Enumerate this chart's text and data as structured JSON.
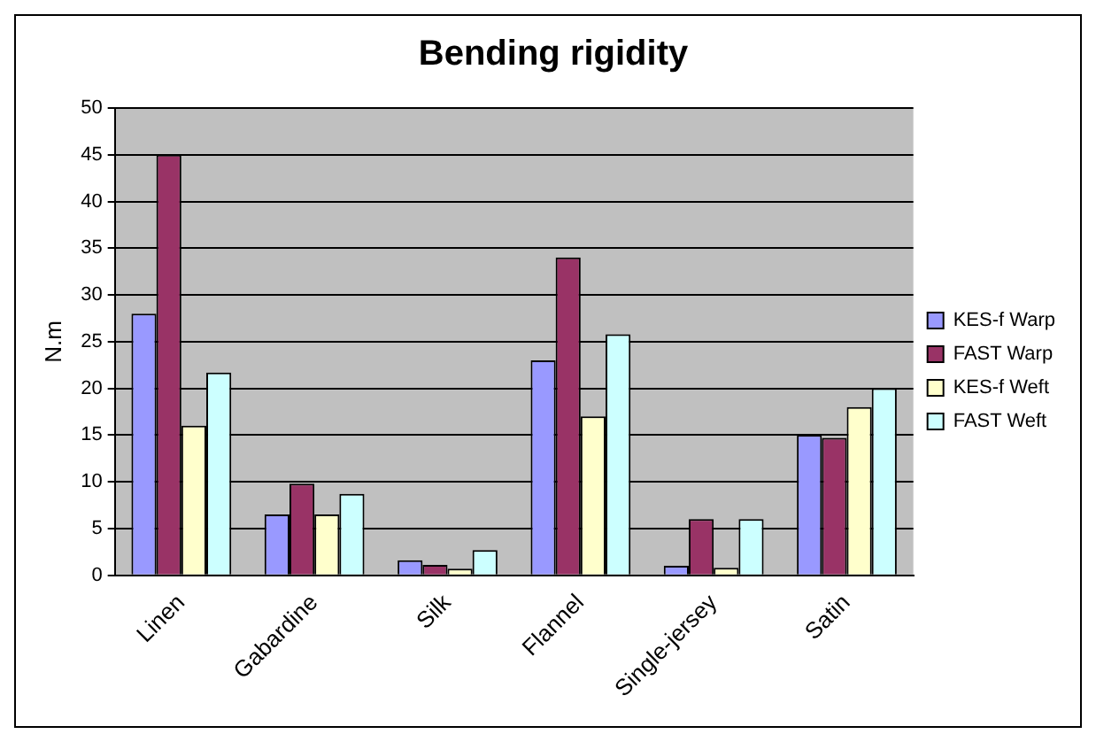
{
  "chart_data": {
    "type": "bar",
    "title": "Bending rigidity",
    "ylabel": "N.m",
    "categories": [
      "Linen",
      "Gabardine",
      "Silk",
      "Flannel",
      "Single-jersey",
      "Satin"
    ],
    "series": [
      {
        "name": "KES-f Warp",
        "color": "#9999ff",
        "values": [
          28,
          6.5,
          1.6,
          23,
          1,
          15
        ]
      },
      {
        "name": "FAST Warp",
        "color": "#993366",
        "values": [
          45,
          9.8,
          1.1,
          34,
          6,
          14.7
        ]
      },
      {
        "name": "KES-f Weft",
        "color": "#ffffcc",
        "values": [
          16,
          6.5,
          0.7,
          17,
          0.8,
          18
        ]
      },
      {
        "name": "FAST Weft",
        "color": "#ccffff",
        "values": [
          21.7,
          8.7,
          2.7,
          25.8,
          6,
          20
        ]
      }
    ],
    "ylim": [
      0,
      50
    ],
    "yticks": [
      0,
      5,
      10,
      15,
      20,
      25,
      30,
      35,
      40,
      45,
      50
    ],
    "grid": "y",
    "legend": "right"
  }
}
